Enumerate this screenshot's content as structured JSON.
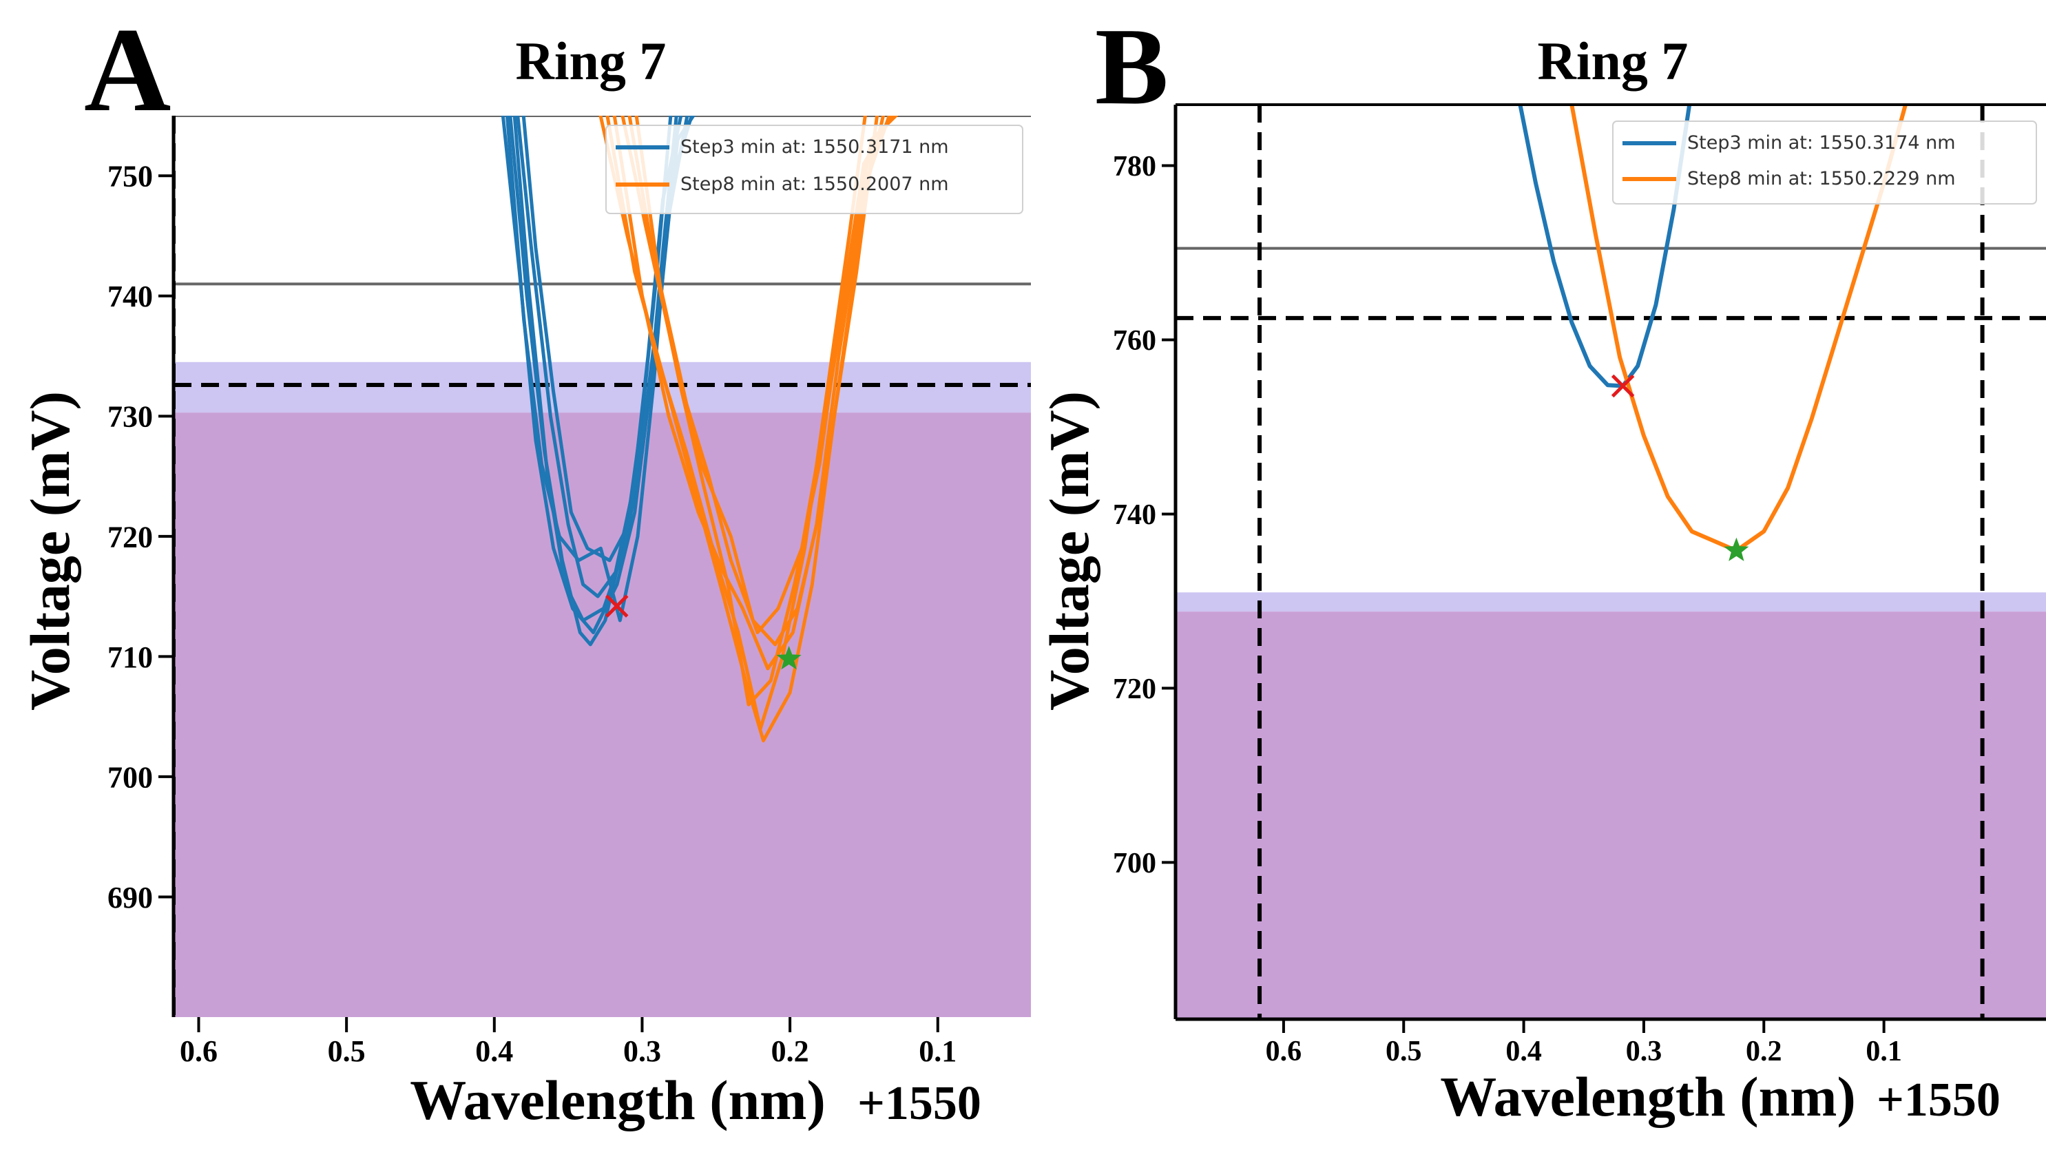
{
  "colors": {
    "blue": "#1f77b4",
    "orange": "#ff7f0e",
    "purple_fill": "#c9a0d6",
    "lavender_band": "#cdc5f2",
    "red_marker": "#e41a1c",
    "green_marker": "#2ca02c"
  },
  "chart_data": [
    {
      "type": "line",
      "panel_letter": "A",
      "title": "Ring 7",
      "xlabel": "Wavelength (nm)",
      "x_offset_label": "+1550",
      "ylabel": "Voltage (mV)",
      "x_reversed": true,
      "xlim": [
        0.617,
        0.037
      ],
      "ylim": [
        680,
        755
      ],
      "xticks": [
        0.6,
        0.5,
        0.4,
        0.3,
        0.2,
        0.1
      ],
      "xtick_labels": [
        "0.6",
        "0.5",
        "0.4",
        "0.3",
        "0.2",
        "0.1"
      ],
      "yticks": [
        690,
        700,
        710,
        720,
        730,
        740,
        750
      ],
      "ytick_labels": [
        "690",
        "700",
        "710",
        "720",
        "730",
        "740",
        "750"
      ],
      "legend_position": "top-right",
      "legend": [
        {
          "label": "Step3 min at: 1550.3171 nm",
          "color": "blue"
        },
        {
          "label": "Step8 min at: 1550.2007 nm",
          "color": "orange"
        }
      ],
      "hlines": [
        {
          "y": 755,
          "style": "solid-gray"
        },
        {
          "y": 741,
          "style": "solid-gray"
        },
        {
          "y": 732.6,
          "style": "dashed-black"
        }
      ],
      "vlines": [
        {
          "x": 0.617,
          "style": "dashed-black"
        }
      ],
      "fill_below": 730.3,
      "band": [
        730.3,
        734.5
      ],
      "markers": [
        {
          "x": 0.3171,
          "y": 714.2,
          "symbol": "x",
          "color": "red_marker"
        },
        {
          "x": 0.2007,
          "y": 709.8,
          "symbol": "star",
          "color": "green_marker"
        }
      ],
      "series": [
        {
          "name": "Step3",
          "color": "blue",
          "sweeps": [
            [
              [
                0.395,
                756
              ],
              [
                0.383,
                742
              ],
              [
                0.372,
                728
              ],
              [
                0.36,
                719
              ],
              [
                0.347,
                714
              ],
              [
                0.333,
                712
              ],
              [
                0.317,
                716
              ],
              [
                0.305,
                722
              ],
              [
                0.295,
                732
              ],
              [
                0.285,
                745
              ],
              [
                0.276,
                756
              ]
            ],
            [
              [
                0.39,
                756
              ],
              [
                0.378,
                740
              ],
              [
                0.366,
                727
              ],
              [
                0.354,
                718
              ],
              [
                0.342,
                712
              ],
              [
                0.335,
                711
              ],
              [
                0.325,
                713
              ],
              [
                0.31,
                721
              ],
              [
                0.3,
                730
              ],
              [
                0.29,
                742
              ],
              [
                0.28,
                756
              ]
            ],
            [
              [
                0.385,
                756
              ],
              [
                0.375,
                744
              ],
              [
                0.362,
                730
              ],
              [
                0.35,
                721
              ],
              [
                0.34,
                716
              ],
              [
                0.33,
                715
              ],
              [
                0.318,
                717
              ],
              [
                0.306,
                724
              ],
              [
                0.296,
                735
              ],
              [
                0.286,
                748
              ],
              [
                0.272,
                756
              ]
            ],
            [
              [
                0.392,
                756
              ],
              [
                0.38,
                738
              ],
              [
                0.368,
                726
              ],
              [
                0.356,
                720
              ],
              [
                0.343,
                718
              ],
              [
                0.328,
                719
              ],
              [
                0.315,
                713
              ],
              [
                0.303,
                720
              ],
              [
                0.292,
                733
              ],
              [
                0.283,
                746
              ],
              [
                0.268,
                756
              ]
            ],
            [
              [
                0.387,
                756
              ],
              [
                0.377,
                741
              ],
              [
                0.364,
                725
              ],
              [
                0.352,
                716
              ],
              [
                0.34,
                713
              ],
              [
                0.326,
                714
              ],
              [
                0.312,
                719
              ],
              [
                0.3,
                727
              ],
              [
                0.289,
                738
              ],
              [
                0.279,
                750
              ],
              [
                0.264,
                756
              ]
            ],
            [
              [
                0.381,
                756
              ],
              [
                0.372,
                744
              ],
              [
                0.36,
                732
              ],
              [
                0.348,
                722
              ],
              [
                0.337,
                719
              ],
              [
                0.322,
                718
              ],
              [
                0.309,
                721
              ],
              [
                0.298,
                730
              ],
              [
                0.288,
                740
              ],
              [
                0.276,
                753
              ],
              [
                0.26,
                756
              ]
            ]
          ]
        },
        {
          "name": "Step8",
          "color": "orange",
          "sweeps": [
            [
              [
                0.33,
                756
              ],
              [
                0.31,
                745
              ],
              [
                0.29,
                735
              ],
              [
                0.27,
                727
              ],
              [
                0.25,
                718
              ],
              [
                0.235,
                712
              ],
              [
                0.22,
                704
              ],
              [
                0.205,
                710
              ],
              [
                0.19,
                719
              ],
              [
                0.175,
                732
              ],
              [
                0.16,
                745
              ],
              [
                0.148,
                756
              ]
            ],
            [
              [
                0.325,
                756
              ],
              [
                0.305,
                742
              ],
              [
                0.285,
                733
              ],
              [
                0.265,
                724
              ],
              [
                0.245,
                715
              ],
              [
                0.23,
                708
              ],
              [
                0.218,
                703
              ],
              [
                0.2,
                707
              ],
              [
                0.185,
                716
              ],
              [
                0.17,
                730
              ],
              [
                0.155,
                742
              ],
              [
                0.14,
                756
              ]
            ],
            [
              [
                0.32,
                756
              ],
              [
                0.3,
                740
              ],
              [
                0.282,
                730
              ],
              [
                0.262,
                722
              ],
              [
                0.245,
                717
              ],
              [
                0.232,
                714
              ],
              [
                0.215,
                709
              ],
              [
                0.198,
                712
              ],
              [
                0.182,
                721
              ],
              [
                0.167,
                735
              ],
              [
                0.152,
                747
              ],
              [
                0.135,
                756
              ]
            ],
            [
              [
                0.315,
                756
              ],
              [
                0.298,
                746
              ],
              [
                0.28,
                736
              ],
              [
                0.26,
                726
              ],
              [
                0.24,
                720
              ],
              [
                0.225,
                713
              ],
              [
                0.21,
                711
              ],
              [
                0.195,
                714
              ],
              [
                0.178,
                723
              ],
              [
                0.162,
                737
              ],
              [
                0.147,
                750
              ],
              [
                0.13,
                756
              ]
            ],
            [
              [
                0.31,
                756
              ],
              [
                0.292,
                743
              ],
              [
                0.275,
                733
              ],
              [
                0.258,
                724
              ],
              [
                0.242,
                716
              ],
              [
                0.228,
                706
              ],
              [
                0.213,
                708
              ],
              [
                0.197,
                716
              ],
              [
                0.18,
                726
              ],
              [
                0.165,
                739
              ],
              [
                0.15,
                751
              ],
              [
                0.126,
                756
              ]
            ],
            [
              [
                0.305,
                756
              ],
              [
                0.288,
                741
              ],
              [
                0.27,
                731
              ],
              [
                0.255,
                725
              ],
              [
                0.24,
                718
              ],
              [
                0.222,
                712
              ],
              [
                0.208,
                714
              ],
              [
                0.192,
                719
              ],
              [
                0.176,
                730
              ],
              [
                0.16,
                742
              ],
              [
                0.145,
                753
              ],
              [
                0.12,
                756
              ]
            ]
          ]
        }
      ]
    },
    {
      "type": "line",
      "panel_letter": "B",
      "title": "Ring 7",
      "xlabel": "Wavelength (nm)",
      "x_offset_label": "+1550",
      "ylabel": "Voltage (mV)",
      "x_reversed": true,
      "xlim": [
        0.69,
        -0.035
      ],
      "ylim": [
        682,
        787
      ],
      "xticks": [
        0.6,
        0.5,
        0.4,
        0.3,
        0.2,
        0.1
      ],
      "xtick_labels": [
        "0.6",
        "0.5",
        "0.4",
        "0.3",
        "0.2",
        "0.1"
      ],
      "yticks": [
        700,
        720,
        740,
        760,
        780
      ],
      "ytick_labels": [
        "700",
        "720",
        "740",
        "760",
        "780"
      ],
      "legend_position": "top-right",
      "legend": [
        {
          "label": "Step3 min at: 1550.3174 nm",
          "color": "blue"
        },
        {
          "label": "Step8 min at: 1550.2229 nm",
          "color": "orange"
        }
      ],
      "hlines": [
        {
          "y": 770.5,
          "style": "solid-gray"
        },
        {
          "y": 762.5,
          "style": "dashed-black"
        }
      ],
      "vlines": [
        {
          "x": 0.62,
          "style": "dashed-black"
        },
        {
          "x": 0.018,
          "style": "dashed-black"
        }
      ],
      "fill_below": 728.8,
      "band": [
        728.8,
        731.0
      ],
      "markers": [
        {
          "x": 0.3174,
          "y": 754.7,
          "symbol": "x",
          "color": "red_marker"
        },
        {
          "x": 0.2229,
          "y": 735.8,
          "symbol": "star",
          "color": "green_marker"
        }
      ],
      "series": [
        {
          "name": "Step3",
          "color": "blue",
          "sweeps": [
            [
              [
                0.403,
                787
              ],
              [
                0.39,
                778
              ],
              [
                0.375,
                769
              ],
              [
                0.36,
                762
              ],
              [
                0.345,
                757
              ],
              [
                0.33,
                754.8
              ],
              [
                0.3174,
                754.7
              ],
              [
                0.305,
                757
              ],
              [
                0.29,
                764
              ],
              [
                0.275,
                775
              ],
              [
                0.262,
                787
              ]
            ]
          ]
        },
        {
          "name": "Step8",
          "color": "orange",
          "sweeps": [
            [
              [
                0.36,
                787
              ],
              [
                0.34,
                772
              ],
              [
                0.32,
                758
              ],
              [
                0.3,
                749
              ],
              [
                0.28,
                742
              ],
              [
                0.26,
                738
              ],
              [
                0.2229,
                735.8
              ],
              [
                0.2,
                738
              ],
              [
                0.18,
                743
              ],
              [
                0.16,
                751
              ],
              [
                0.14,
                760
              ],
              [
                0.12,
                769
              ],
              [
                0.1,
                778
              ],
              [
                0.082,
                787
              ]
            ]
          ]
        }
      ]
    }
  ]
}
